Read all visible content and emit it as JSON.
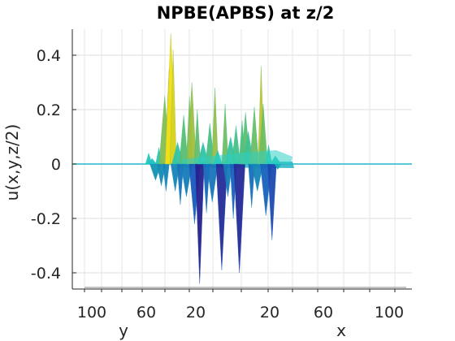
{
  "chart_data": {
    "type": "surface",
    "title": "NPBE(APBS) at z/2",
    "zlabel": "u(x,y,z/2)",
    "xlabel": "x",
    "ylabel": "y",
    "zlim": [
      -0.45,
      0.5
    ],
    "z_ticks": [
      0.4,
      0.2,
      0,
      -0.2,
      -0.4
    ],
    "z_tick_labels": [
      "0.4",
      "0.2",
      "0",
      "-0.2",
      "-0.4"
    ],
    "y_tick_labels": [
      "100",
      "60",
      "20"
    ],
    "x_tick_labels": [
      "20",
      "60",
      "100"
    ],
    "grid": true,
    "colormap": "parula",
    "peaks": [
      {
        "x": 0.225,
        "z": 0.04
      },
      {
        "x": 0.235,
        "z": 0.02
      },
      {
        "x": 0.245,
        "z": -0.06
      },
      {
        "x": 0.255,
        "z": 0.06
      },
      {
        "x": 0.262,
        "z": -0.08
      },
      {
        "x": 0.272,
        "z": 0.25
      },
      {
        "x": 0.276,
        "z": -0.1
      },
      {
        "x": 0.285,
        "z": 0.35
      },
      {
        "x": 0.29,
        "z": 0.48
      },
      {
        "x": 0.297,
        "z": 0.42
      },
      {
        "x": 0.303,
        "z": -0.1
      },
      {
        "x": 0.31,
        "z": 0.08
      },
      {
        "x": 0.318,
        "z": -0.15
      },
      {
        "x": 0.328,
        "z": 0.18
      },
      {
        "x": 0.336,
        "z": -0.12
      },
      {
        "x": 0.345,
        "z": 0.25
      },
      {
        "x": 0.352,
        "z": 0.3
      },
      {
        "x": 0.36,
        "z": -0.22
      },
      {
        "x": 0.368,
        "z": 0.2
      },
      {
        "x": 0.375,
        "z": -0.44
      },
      {
        "x": 0.385,
        "z": 0.08
      },
      {
        "x": 0.395,
        "z": -0.18
      },
      {
        "x": 0.405,
        "z": 0.15
      },
      {
        "x": 0.412,
        "z": -0.14
      },
      {
        "x": 0.42,
        "z": 0.28
      },
      {
        "x": 0.428,
        "z": 0.05
      },
      {
        "x": 0.44,
        "z": -0.39
      },
      {
        "x": 0.45,
        "z": 0.22
      },
      {
        "x": 0.458,
        "z": -0.12
      },
      {
        "x": 0.466,
        "z": 0.1
      },
      {
        "x": 0.474,
        "z": -0.2
      },
      {
        "x": 0.482,
        "z": 0.14
      },
      {
        "x": 0.492,
        "z": -0.4
      },
      {
        "x": 0.5,
        "z": 0.16
      },
      {
        "x": 0.51,
        "z": 0.19
      },
      {
        "x": 0.518,
        "z": 0.12
      },
      {
        "x": 0.528,
        "z": -0.16
      },
      {
        "x": 0.536,
        "z": 0.21
      },
      {
        "x": 0.545,
        "z": -0.1
      },
      {
        "x": 0.556,
        "z": 0.36
      },
      {
        "x": 0.562,
        "z": 0.22
      },
      {
        "x": 0.57,
        "z": -0.19
      },
      {
        "x": 0.578,
        "z": 0.07
      },
      {
        "x": 0.588,
        "z": -0.28
      },
      {
        "x": 0.598,
        "z": 0.03
      },
      {
        "x": 0.605,
        "z": -0.02
      }
    ]
  }
}
